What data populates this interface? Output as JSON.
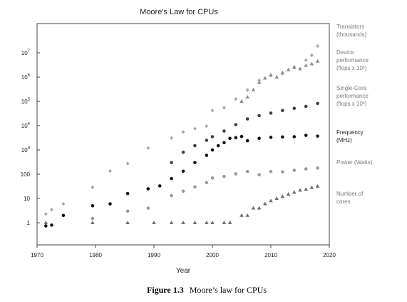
{
  "chart_data": {
    "type": "scatter",
    "title": "Moore's Law for CPUs",
    "xlabel": "Year",
    "ylabel": "",
    "xlim": [
      1970,
      2020
    ],
    "ylim": [
      0.3,
      200000000
    ],
    "y_scale": "log",
    "grid": false,
    "legend_placement": "right, aligned with series",
    "x_ticks": [
      "1970",
      "1980",
      "1990",
      "2000",
      "2010",
      "2020"
    ],
    "y_ticks": [
      {
        "value": 1,
        "base": "1",
        "exp": ""
      },
      {
        "value": 10,
        "base": "10",
        "exp": ""
      },
      {
        "value": 100,
        "base": "100",
        "exp": ""
      },
      {
        "value": 1000,
        "base": "10",
        "exp": "3"
      },
      {
        "value": 10000,
        "base": "10",
        "exp": "4"
      },
      {
        "value": 100000,
        "base": "10",
        "exp": "5"
      },
      {
        "value": 1000000,
        "base": "10",
        "exp": "6"
      },
      {
        "value": 10000000,
        "base": "10",
        "exp": "7"
      }
    ],
    "series": [
      {
        "name": "Transistors (thousands)",
        "legend_lines": [
          "Transistors",
          "(thousands)"
        ],
        "color": "#a8a8a8",
        "marker": "diamond",
        "points": [
          [
            1971.5,
            2.3
          ],
          [
            1972.5,
            3.5
          ],
          [
            1974.5,
            6
          ],
          [
            1979.5,
            29
          ],
          [
            1982.5,
            134
          ],
          [
            1985.5,
            275
          ],
          [
            1989,
            1200
          ],
          [
            1993,
            3100
          ],
          [
            1995,
            5500
          ],
          [
            1997,
            7500
          ],
          [
            1999,
            9500
          ],
          [
            2000,
            42000
          ],
          [
            2002,
            55000
          ],
          [
            2004,
            125000
          ],
          [
            2006,
            291000
          ],
          [
            2008,
            730000
          ],
          [
            2010,
            1170000
          ],
          [
            2012,
            1400000
          ],
          [
            2014,
            2600000
          ],
          [
            2016,
            5000000
          ],
          [
            2017,
            8000000
          ],
          [
            2018,
            19000000
          ]
        ]
      },
      {
        "name": "Device performance (flops x 10³)",
        "legend_lines": [
          "Device",
          "performance",
          "(flops x 10³)"
        ],
        "color": "#8c8c8c",
        "marker": "triangle",
        "points": [
          [
            2005,
            100000
          ],
          [
            2006,
            150000
          ],
          [
            2007,
            300000
          ],
          [
            2008,
            600000
          ],
          [
            2009,
            900000
          ],
          [
            2010,
            1200000
          ],
          [
            2011,
            1000000
          ],
          [
            2012,
            1500000
          ],
          [
            2013,
            2000000
          ],
          [
            2014,
            2500000
          ],
          [
            2015,
            2200000
          ],
          [
            2016,
            3000000
          ],
          [
            2017,
            3500000
          ],
          [
            2018,
            4500000
          ]
        ]
      },
      {
        "name": "Single-Core performance (flops x 10³)",
        "legend_lines": [
          "Single-Core",
          "performance",
          "(flops x 10³)"
        ],
        "color": "#404040",
        "marker": "circle",
        "points": [
          [
            1993,
            300
          ],
          [
            1995,
            800
          ],
          [
            1997,
            1500
          ],
          [
            1999,
            2500
          ],
          [
            2000,
            3500
          ],
          [
            2002,
            6000
          ],
          [
            2004,
            11000
          ],
          [
            2006,
            19000
          ],
          [
            2008,
            26000
          ],
          [
            2010,
            33000
          ],
          [
            2012,
            42000
          ],
          [
            2014,
            52000
          ],
          [
            2016,
            62000
          ],
          [
            2018,
            82000
          ]
        ]
      },
      {
        "name": "Frequency (MHz)",
        "legend_lines": [
          "Frequency",
          "(MHz)"
        ],
        "color": "#111111",
        "marker": "circle",
        "points": [
          [
            1971.5,
            0.74
          ],
          [
            1972.5,
            0.8
          ],
          [
            1974.5,
            2
          ],
          [
            1979.5,
            5
          ],
          [
            1982.5,
            6
          ],
          [
            1985.5,
            16
          ],
          [
            1989,
            25
          ],
          [
            1991,
            33
          ],
          [
            1993,
            66
          ],
          [
            1995,
            133
          ],
          [
            1997,
            300
          ],
          [
            1999,
            600
          ],
          [
            2000,
            1000
          ],
          [
            2001,
            1500
          ],
          [
            2002,
            2000
          ],
          [
            2003,
            3000
          ],
          [
            2004,
            3200
          ],
          [
            2005,
            3600
          ],
          [
            2006,
            2400
          ],
          [
            2008,
            3000
          ],
          [
            2010,
            3300
          ],
          [
            2012,
            3400
          ],
          [
            2014,
            3500
          ],
          [
            2016,
            4000
          ],
          [
            2018,
            3700
          ]
        ]
      },
      {
        "name": "Power (Watts)",
        "legend_lines": [
          "Power (Watts)"
        ],
        "color": "#9a9a9a",
        "marker": "circle",
        "points": [
          [
            1979.5,
            1.5
          ],
          [
            1985.5,
            3
          ],
          [
            1989,
            4
          ],
          [
            1993,
            13
          ],
          [
            1995,
            20
          ],
          [
            1997,
            30
          ],
          [
            1999,
            45
          ],
          [
            2000,
            70
          ],
          [
            2002,
            80
          ],
          [
            2004,
            103
          ],
          [
            2006,
            130
          ],
          [
            2008,
            95
          ],
          [
            2010,
            130
          ],
          [
            2012,
            125
          ],
          [
            2014,
            145
          ],
          [
            2016,
            165
          ],
          [
            2018,
            180
          ]
        ]
      },
      {
        "name": "Number of cores",
        "legend_lines": [
          "Number of",
          "cores"
        ],
        "color": "#6e6e6e",
        "marker": "triangle",
        "points": [
          [
            1971.5,
            1
          ],
          [
            1979.5,
            1
          ],
          [
            1985.5,
            1
          ],
          [
            1990,
            1
          ],
          [
            1993,
            1
          ],
          [
            1995,
            1
          ],
          [
            1997,
            1
          ],
          [
            1999,
            1
          ],
          [
            2000,
            1
          ],
          [
            2002,
            1
          ],
          [
            2003,
            1
          ],
          [
            2005,
            2
          ],
          [
            2006,
            2
          ],
          [
            2007,
            4
          ],
          [
            2008,
            4
          ],
          [
            2009,
            6
          ],
          [
            2010,
            8
          ],
          [
            2011,
            10
          ],
          [
            2012,
            12
          ],
          [
            2013,
            15
          ],
          [
            2014,
            18
          ],
          [
            2015,
            22
          ],
          [
            2016,
            24
          ],
          [
            2017,
            28
          ],
          [
            2018,
            32
          ]
        ]
      }
    ]
  },
  "caption": {
    "label": "Figure 1.3",
    "text": "Moore’s law for CPUs"
  }
}
